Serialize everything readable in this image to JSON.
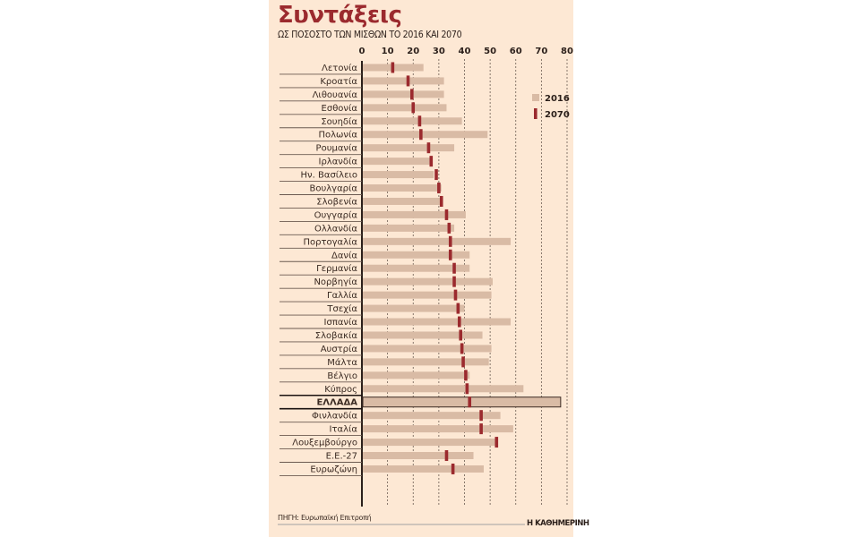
{
  "chart_data": {
    "type": "bar",
    "title": "Συντάξεις",
    "subtitle": "ΩΣ ΠΟΣΟΣΤΟ ΤΩΝ ΜΙΣΘΩΝ ΤΟ 2016 ΚΑΙ 2070",
    "xlim": [
      0,
      80
    ],
    "ticks": [
      "0",
      "10",
      "20",
      "30",
      "40",
      "50",
      "60",
      "70",
      "80"
    ],
    "tick_values": [
      0,
      10,
      20,
      30,
      40,
      50,
      60,
      70,
      80
    ],
    "grid": true,
    "legend_position": "top-right",
    "categories": [
      "Λετονία",
      "Κροατία",
      "Λιθουανία",
      "Εσθονία",
      "Σουηδία",
      "Πολωνία",
      "Ρουμανία",
      "Ιρλανδία",
      "Ην. Βασίλειο",
      "Βουλγαρία",
      "Σλοβενία",
      "Ουγγαρία",
      "Ολλανδία",
      "Πορτογαλία",
      "Δανία",
      "Γερμανία",
      "Νορβηγία",
      "Γαλλία",
      "Τσεχία",
      "Ισπανία",
      "Σλοβακία",
      "Αυστρία",
      "Μάλτα",
      "Βέλγιο",
      "Κύπρος",
      "ΕΛΛΑΔΑ",
      "Φινλανδία",
      "Ιταλία",
      "Λουξεμβούργο",
      "Ε.Ε.-27",
      "Ευρωζώνη"
    ],
    "highlight": "ΕΛΛΑΔΑ",
    "series": [
      {
        "name": "2016",
        "color": "#d9bba5",
        "mark": "bar",
        "values": [
          24,
          32,
          32,
          33,
          39,
          49,
          36,
          27,
          28,
          31,
          30.5,
          40.5,
          36,
          58,
          42,
          42,
          51,
          50.5,
          40,
          58,
          47,
          50.5,
          49.5,
          42,
          63,
          77.5,
          54,
          59,
          52,
          43.5,
          47.5
        ]
      },
      {
        "name": "2070",
        "color": "#9b2a2e",
        "mark": "tick",
        "values": [
          12,
          18,
          19.5,
          20,
          22.5,
          23,
          26,
          27,
          29,
          30,
          31,
          33,
          34,
          34.5,
          34.5,
          36,
          36,
          36.5,
          37.5,
          38,
          38.5,
          39,
          39.5,
          40.5,
          41,
          42,
          46.5,
          46.5,
          52.5,
          33,
          35.5
        ]
      }
    ]
  },
  "footer": {
    "source": "ΠΗΓΗ: Ευρωπαϊκή Επιτροπή",
    "brand": "Η ΚΑΘΗΜΕΡΙΝΗ"
  },
  "colors": {
    "background": "#fde8d4",
    "accent": "#9b2a2e",
    "bar2016": "#d9bba5"
  }
}
